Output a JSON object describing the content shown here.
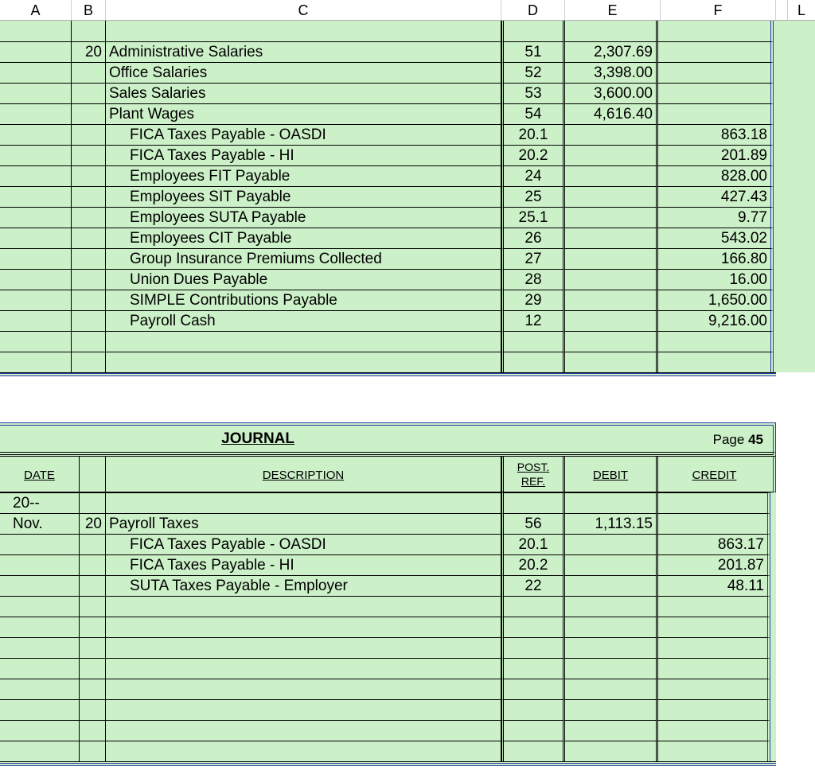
{
  "column_headers": [
    "A",
    "B",
    "C",
    "D",
    "E",
    "F",
    "L"
  ],
  "colors": {
    "cell_bg": "#ccf0c8",
    "grid": "#000000",
    "double_rule": "#2a3aa8",
    "page_bg": "#ffffff"
  },
  "typography": {
    "font_family": "Arial",
    "body_size_pt": 14,
    "header_size_pt": 11
  },
  "table1": {
    "type": "table",
    "columns": [
      "A",
      "B",
      "C",
      "D",
      "E",
      "F"
    ],
    "first_row_empty": true,
    "rows": [
      {
        "b": "20",
        "c": "Administrative Salaries",
        "indent": false,
        "d": "51",
        "e": "2,307.69",
        "f": ""
      },
      {
        "b": "",
        "c": "Office Salaries",
        "indent": false,
        "d": "52",
        "e": "3,398.00",
        "f": ""
      },
      {
        "b": "",
        "c": "Sales Salaries",
        "indent": false,
        "d": "53",
        "e": "3,600.00",
        "f": ""
      },
      {
        "b": "",
        "c": "Plant Wages",
        "indent": false,
        "d": "54",
        "e": "4,616.40",
        "f": ""
      },
      {
        "b": "",
        "c": "FICA Taxes Payable - OASDI",
        "indent": true,
        "d": "20.1",
        "e": "",
        "f": "863.18"
      },
      {
        "b": "",
        "c": "FICA Taxes Payable - HI",
        "indent": true,
        "d": "20.2",
        "e": "",
        "f": "201.89"
      },
      {
        "b": "",
        "c": "Employees FIT Payable",
        "indent": true,
        "d": "24",
        "e": "",
        "f": "828.00"
      },
      {
        "b": "",
        "c": "Employees SIT Payable",
        "indent": true,
        "d": "25",
        "e": "",
        "f": "427.43"
      },
      {
        "b": "",
        "c": "Employees SUTA Payable",
        "indent": true,
        "d": "25.1",
        "e": "",
        "f": "9.77"
      },
      {
        "b": "",
        "c": "Employees CIT Payable",
        "indent": true,
        "d": "26",
        "e": "",
        "f": "543.02"
      },
      {
        "b": "",
        "c": "Group Insurance Premiums Collected",
        "indent": true,
        "d": "27",
        "e": "",
        "f": "166.80"
      },
      {
        "b": "",
        "c": "Union Dues Payable",
        "indent": true,
        "d": "28",
        "e": "",
        "f": "16.00"
      },
      {
        "b": "",
        "c": "SIMPLE Contributions Payable",
        "indent": true,
        "d": "29",
        "e": "",
        "f": "1,650.00"
      },
      {
        "b": "",
        "c": "Payroll Cash",
        "indent": true,
        "d": "12",
        "e": "",
        "f": "9,216.00"
      },
      {
        "b": "",
        "c": "",
        "indent": false,
        "d": "",
        "e": "",
        "f": ""
      },
      {
        "b": "",
        "c": "",
        "indent": false,
        "d": "",
        "e": "",
        "f": ""
      }
    ]
  },
  "table2": {
    "type": "table",
    "title": "JOURNAL",
    "page_label": "Page",
    "page_number": "45",
    "headers": {
      "date": "DATE",
      "description": "DESCRIPTION",
      "post_ref_top": "POST.",
      "post_ref_bottom": "REF.",
      "debit": "DEBIT",
      "credit": "CREDIT"
    },
    "rows": [
      {
        "a": "20--",
        "b": "",
        "c": "",
        "indent": false,
        "d": "",
        "e": "",
        "f": ""
      },
      {
        "a": "Nov.",
        "b": "20",
        "c": "Payroll Taxes",
        "indent": false,
        "d": "56",
        "e": "1,113.15",
        "f": ""
      },
      {
        "a": "",
        "b": "",
        "c": "FICA Taxes Payable - OASDI",
        "indent": true,
        "d": "20.1",
        "e": "",
        "f": "863.17"
      },
      {
        "a": "",
        "b": "",
        "c": "FICA Taxes Payable - HI",
        "indent": true,
        "d": "20.2",
        "e": "",
        "f": "201.87"
      },
      {
        "a": "",
        "b": "",
        "c": "SUTA Taxes Payable - Employer",
        "indent": true,
        "d": "22",
        "e": "",
        "f": "48.11"
      },
      {
        "a": "",
        "b": "",
        "c": "",
        "indent": false,
        "d": "",
        "e": "",
        "f": ""
      },
      {
        "a": "",
        "b": "",
        "c": "",
        "indent": false,
        "d": "",
        "e": "",
        "f": ""
      },
      {
        "a": "",
        "b": "",
        "c": "",
        "indent": false,
        "d": "",
        "e": "",
        "f": ""
      },
      {
        "a": "",
        "b": "",
        "c": "",
        "indent": false,
        "d": "",
        "e": "",
        "f": ""
      },
      {
        "a": "",
        "b": "",
        "c": "",
        "indent": false,
        "d": "",
        "e": "",
        "f": ""
      },
      {
        "a": "",
        "b": "",
        "c": "",
        "indent": false,
        "d": "",
        "e": "",
        "f": ""
      },
      {
        "a": "",
        "b": "",
        "c": "",
        "indent": false,
        "d": "",
        "e": "",
        "f": ""
      },
      {
        "a": "",
        "b": "",
        "c": "",
        "indent": false,
        "d": "",
        "e": "",
        "f": ""
      }
    ]
  }
}
